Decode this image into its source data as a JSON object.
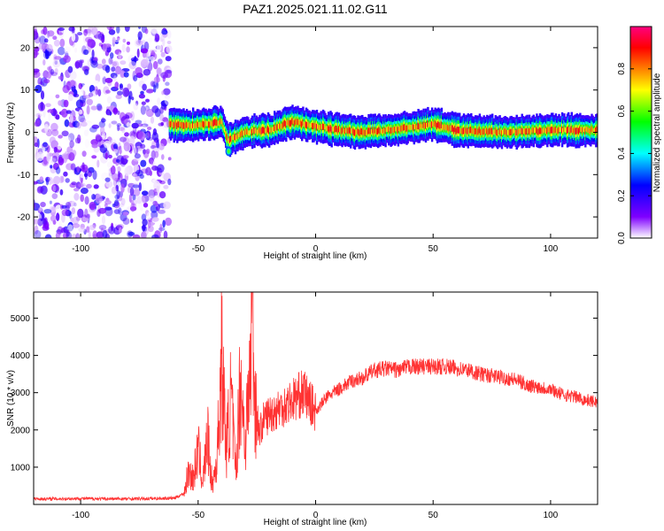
{
  "chart_data": [
    {
      "type": "heatmap",
      "title": "PAZ1.2025.021.11.02.G11",
      "xlabel": "Height of straight line (km)",
      "ylabel": "Frequency (Hz)",
      "xlim": [
        -120,
        120
      ],
      "ylim": [
        -25,
        25
      ],
      "xticks": [
        -100,
        -50,
        0,
        50,
        100
      ],
      "yticks": [
        -20,
        -10,
        0,
        10,
        20
      ],
      "grid": false,
      "colorbar": {
        "label": "Normalized spectral amplitude",
        "range": [
          0,
          1
        ],
        "ticks": [
          0.0,
          0.2,
          0.4,
          0.6,
          0.8
        ],
        "colors": [
          "#ffffff",
          "#7f00ff",
          "#0000ff",
          "#00ffff",
          "#00ff00",
          "#ffff00",
          "#ff7f00",
          "#ff0000",
          "#ff0080"
        ]
      },
      "regions": [
        {
          "name": "noise",
          "x_range": [
            -120,
            -62
          ],
          "freq_range": [
            -25,
            25
          ],
          "amplitude_range": [
            0.0,
            0.25
          ]
        },
        {
          "name": "signal",
          "x_range": [
            -62,
            120
          ],
          "center_frequency": [
            {
              "x": -62,
              "f": 2.0
            },
            {
              "x": -55,
              "f": 1.5
            },
            {
              "x": -45,
              "f": 2.0
            },
            {
              "x": -40,
              "f": 2.5
            },
            {
              "x": -37,
              "f": -2.0
            },
            {
              "x": -30,
              "f": 0.0
            },
            {
              "x": -20,
              "f": 0.5
            },
            {
              "x": -10,
              "f": 2.5
            },
            {
              "x": 0,
              "f": 1.5
            },
            {
              "x": 10,
              "f": 0.5
            },
            {
              "x": 20,
              "f": 0.0
            },
            {
              "x": 30,
              "f": 0.5
            },
            {
              "x": 40,
              "f": 1.0
            },
            {
              "x": 50,
              "f": 2.0
            },
            {
              "x": 60,
              "f": 0.5
            },
            {
              "x": 80,
              "f": 0.0
            },
            {
              "x": 100,
              "f": 0.5
            },
            {
              "x": 120,
              "f": 0.5
            }
          ],
          "amplitude_range": [
            0.2,
            0.9
          ]
        }
      ]
    },
    {
      "type": "line",
      "xlabel": "Height of straight line (km)",
      "ylabel": "SNR (10 * v/v)",
      "xlim": [
        -120,
        120
      ],
      "ylim": [
        0,
        5700
      ],
      "xticks": [
        -100,
        -50,
        0,
        50,
        100
      ],
      "yticks": [
        1000,
        2000,
        3000,
        4000,
        5000
      ],
      "grid": false,
      "color": "#ff3333",
      "series": [
        {
          "x": [
            -120,
            -110,
            -100,
            -90,
            -80,
            -70,
            -60,
            -56,
            -54,
            -52,
            -50,
            -48,
            -46,
            -44,
            -42,
            -40,
            -38,
            -36,
            -34,
            -32,
            -30,
            -28,
            -27,
            -26,
            -24,
            -22,
            -20,
            -15,
            -10,
            -5,
            0,
            5,
            10,
            15,
            20,
            25,
            30,
            35,
            40,
            45,
            50,
            55,
            60,
            65,
            70,
            75,
            80,
            85,
            90,
            95,
            100,
            105,
            110,
            115,
            120
          ],
          "y": [
            150,
            150,
            160,
            150,
            150,
            160,
            170,
            300,
            900,
            700,
            1500,
            600,
            1800,
            500,
            1200,
            3900,
            1500,
            2900,
            800,
            3400,
            1700,
            3300,
            5700,
            3000,
            1900,
            2300,
            2400,
            2600,
            2800,
            3000,
            2500,
            2900,
            3100,
            3300,
            3400,
            3600,
            3650,
            3600,
            3700,
            3700,
            3700,
            3700,
            3650,
            3600,
            3500,
            3450,
            3400,
            3350,
            3200,
            3150,
            3100,
            2950,
            2900,
            2800,
            2750
          ]
        }
      ]
    }
  ]
}
